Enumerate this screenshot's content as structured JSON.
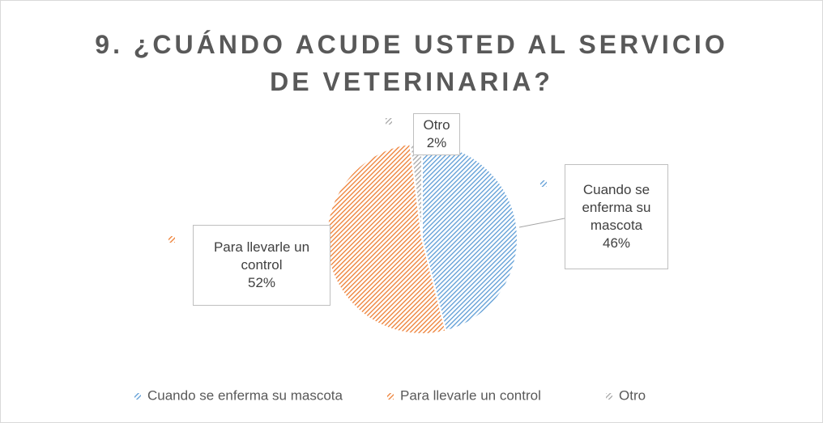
{
  "chart_data": {
    "type": "pie",
    "title": "9. ¿CUÁNDO ACUDE USTED AL SERVICIO DE VETERINARIA?",
    "categories": [
      "Cuando se enferma su mascota",
      "Para llevarle un control",
      "Otro"
    ],
    "values": [
      46,
      52,
      2
    ],
    "value_labels": [
      "46%",
      "52%",
      "2%"
    ],
    "colors": [
      "#5b9bd5",
      "#ed7d31",
      "#a5a5a5"
    ],
    "legend": "bottom"
  }
}
